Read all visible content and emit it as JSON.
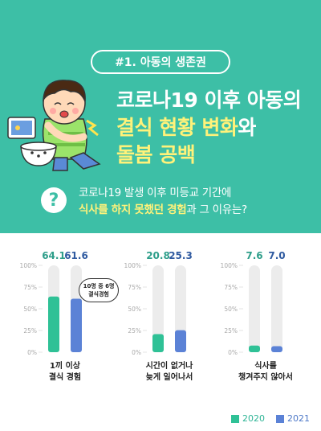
{
  "colors": {
    "background": "#3dbfa6",
    "panel": "#ffffff",
    "series_2020": "#2fc196",
    "series_2021": "#5b82d6",
    "bar_track": "#ececec",
    "headline_highlight": "#fff27a"
  },
  "header": {
    "tag": "#1. 아동의 생존권",
    "headline": {
      "line1": "코로나19 이후 아동의",
      "line2_highlight": "결식 현황 변화",
      "line2_rest": "와",
      "line3": "돌봄 공백"
    }
  },
  "question": {
    "icon": "question-mark-icon",
    "mark": "?",
    "line1": "코로나19 발생 이후 미등교 기간에",
    "line2_highlight": "식사를 하지 못했던 경험",
    "line2_rest": "과 그 이유는?"
  },
  "illustration": {
    "icon": "child-with-stomachache-icon"
  },
  "callout": {
    "line1": "10명 중 6명",
    "line2": "결식경험"
  },
  "chart_data": {
    "type": "bar",
    "ylim": [
      0,
      100
    ],
    "yticks": [
      "100%",
      "75%",
      "50%",
      "25%",
      "0%"
    ],
    "categories": [
      "1끼 이상\n결식 경험",
      "시간이 없거나\n늦게 일어나서",
      "식사를\n챙겨주지 않아서"
    ],
    "series": [
      {
        "name": "2020",
        "values": [
          64.1,
          20.8,
          7.6
        ]
      },
      {
        "name": "2021",
        "values": [
          61.6,
          25.3,
          7.0
        ]
      }
    ],
    "value_labels": [
      [
        "64.1",
        "61.6"
      ],
      [
        "20.8",
        "25.3"
      ],
      [
        "7.6",
        "7.0"
      ]
    ],
    "legend": "bottom-right"
  }
}
